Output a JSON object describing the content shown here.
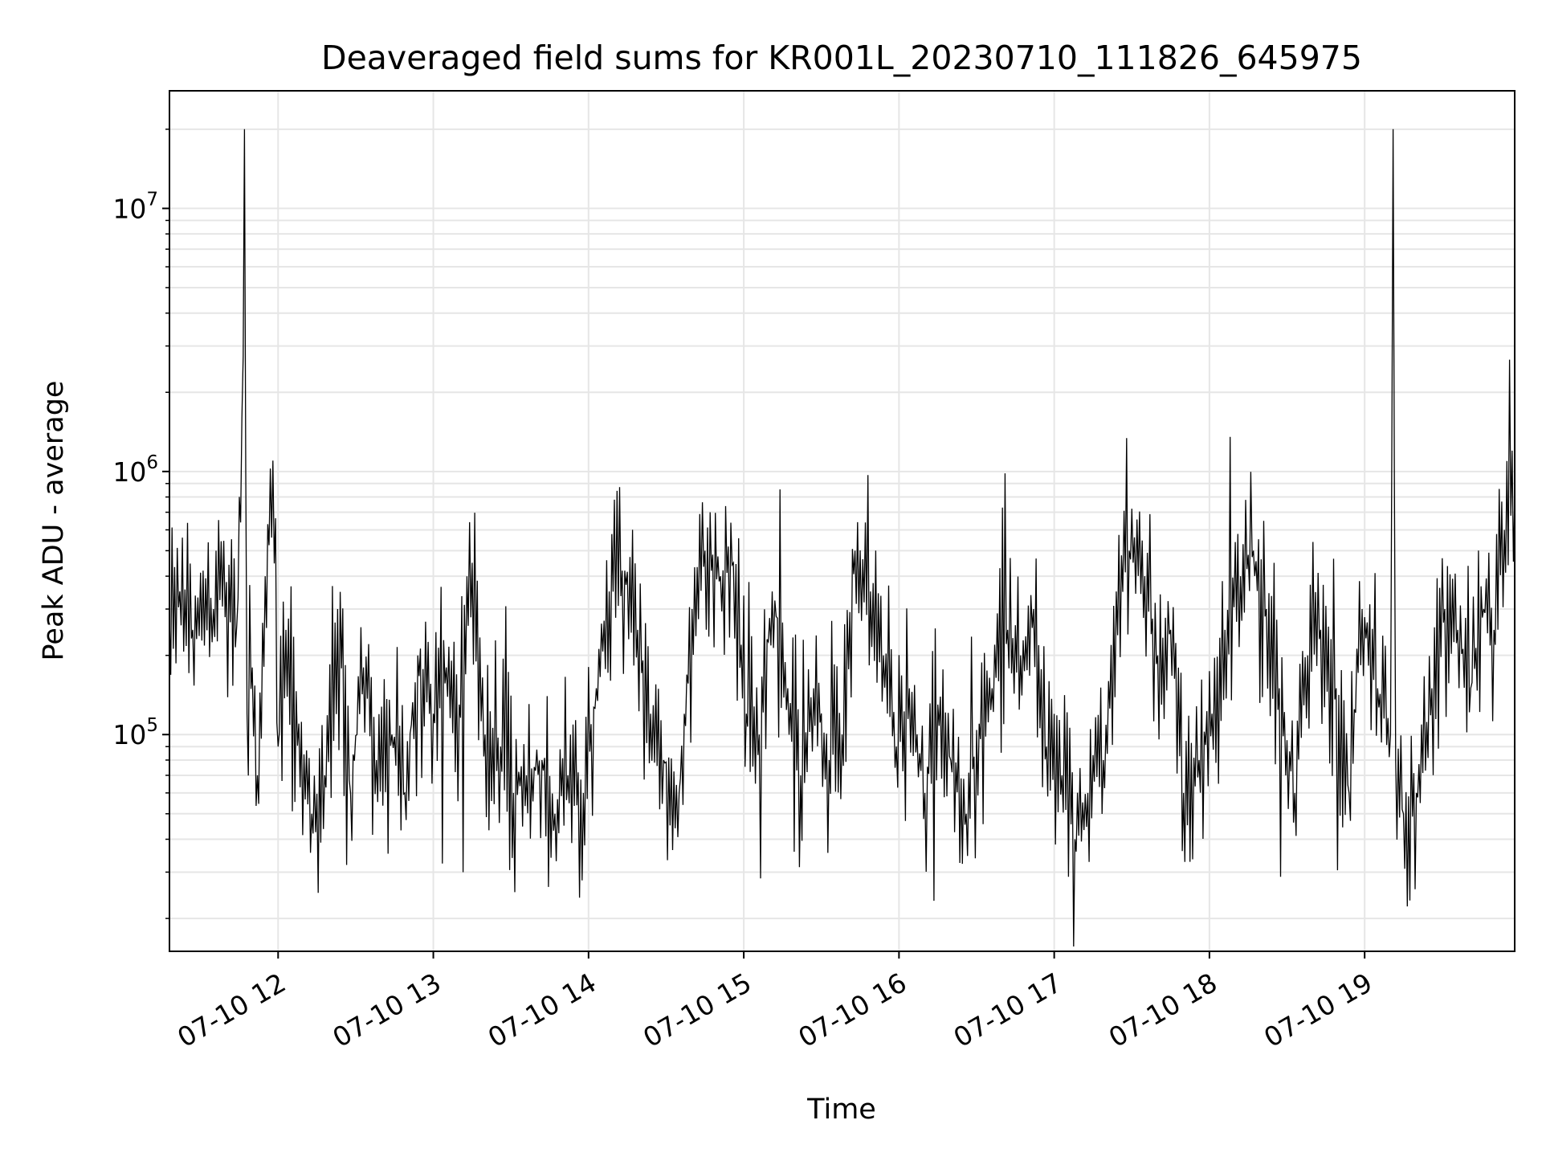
{
  "chart_data": {
    "type": "line",
    "title": "Deaveraged field sums for KR001L_20230710_111826_645975",
    "xlabel": "Time",
    "ylabel": "Peak ADU - average",
    "x_scale": "time",
    "y_scale": "log",
    "xlim": [
      "2023-07-10 11:18",
      "2023-07-10 19:58"
    ],
    "ylim": [
      15000,
      28000000
    ],
    "grid": true,
    "line_color": "#000000",
    "grid_color": "#e6e6e6",
    "x_ticks": [
      {
        "value": "2023-07-10 12:00",
        "label": "07-10 12"
      },
      {
        "value": "2023-07-10 13:00",
        "label": "07-10 13"
      },
      {
        "value": "2023-07-10 14:00",
        "label": "07-10 14"
      },
      {
        "value": "2023-07-10 15:00",
        "label": "07-10 15"
      },
      {
        "value": "2023-07-10 16:00",
        "label": "07-10 16"
      },
      {
        "value": "2023-07-10 17:00",
        "label": "07-10 17"
      },
      {
        "value": "2023-07-10 18:00",
        "label": "07-10 18"
      },
      {
        "value": "2023-07-10 19:00",
        "label": "07-10 19"
      }
    ],
    "y_ticks": [
      {
        "value": 100000,
        "base": "10",
        "exp": "5"
      },
      {
        "value": 1000000,
        "base": "10",
        "exp": "6"
      },
      {
        "value": 10000000,
        "base": "10",
        "exp": "7"
      }
    ],
    "series": [
      {
        "x": [
          "2023-07-10 11:18",
          "2023-07-10 11:22",
          "2023-07-10 11:27",
          "2023-07-10 11:31",
          "2023-07-10 11:35",
          "2023-07-10 11:40",
          "2023-07-10 11:44",
          "2023-07-10 11:46",
          "2023-07-10 11:47",
          "2023-07-10 11:48",
          "2023-07-10 11:50",
          "2023-07-10 11:52",
          "2023-07-10 11:55",
          "2023-07-10 11:58",
          "2023-07-10 12:00",
          "2023-07-10 12:03",
          "2023-07-10 12:08",
          "2023-07-10 12:13",
          "2023-07-10 12:18",
          "2023-07-10 12:23",
          "2023-07-10 12:28",
          "2023-07-10 12:33",
          "2023-07-10 12:38",
          "2023-07-10 12:44",
          "2023-07-10 12:49",
          "2023-07-10 12:54",
          "2023-07-10 13:00",
          "2023-07-10 13:05",
          "2023-07-10 13:10",
          "2023-07-10 13:15",
          "2023-07-10 13:20",
          "2023-07-10 13:26",
          "2023-07-10 13:31",
          "2023-07-10 13:36",
          "2023-07-10 13:42",
          "2023-07-10 13:47",
          "2023-07-10 13:52",
          "2023-07-10 13:58",
          "2023-07-10 14:03",
          "2023-07-10 14:08",
          "2023-07-10 14:14",
          "2023-07-10 14:19",
          "2023-07-10 14:24",
          "2023-07-10 14:29",
          "2023-07-10 14:35",
          "2023-07-10 14:40",
          "2023-07-10 14:45",
          "2023-07-10 14:51",
          "2023-07-10 14:56",
          "2023-07-10 15:01",
          "2023-07-10 15:06",
          "2023-07-10 15:11",
          "2023-07-10 15:17",
          "2023-07-10 15:22",
          "2023-07-10 15:27",
          "2023-07-10 15:33",
          "2023-07-10 15:38",
          "2023-07-10 15:43",
          "2023-07-10 15:49",
          "2023-07-10 15:54",
          "2023-07-10 15:59",
          "2023-07-10 16:04",
          "2023-07-10 16:10",
          "2023-07-10 16:15",
          "2023-07-10 16:20",
          "2023-07-10 16:26",
          "2023-07-10 16:31",
          "2023-07-10 16:36",
          "2023-07-10 16:42",
          "2023-07-10 16:47",
          "2023-07-10 16:52",
          "2023-07-10 16:57",
          "2023-07-10 17:03",
          "2023-07-10 17:08",
          "2023-07-10 17:13",
          "2023-07-10 17:19",
          "2023-07-10 17:24",
          "2023-07-10 17:29",
          "2023-07-10 17:35",
          "2023-07-10 17:40",
          "2023-07-10 17:45",
          "2023-07-10 17:50",
          "2023-07-10 17:56",
          "2023-07-10 18:01",
          "2023-07-10 18:06",
          "2023-07-10 18:12",
          "2023-07-10 18:17",
          "2023-07-10 18:22",
          "2023-07-10 18:27",
          "2023-07-10 18:33",
          "2023-07-10 18:38",
          "2023-07-10 18:43",
          "2023-07-10 18:49",
          "2023-07-10 18:54",
          "2023-07-10 18:59",
          "2023-07-10 19:05",
          "2023-07-10 19:10",
          "2023-07-10 19:11",
          "2023-07-10 19:12",
          "2023-07-10 19:15",
          "2023-07-10 19:20",
          "2023-07-10 19:26",
          "2023-07-10 19:31",
          "2023-07-10 19:36",
          "2023-07-10 19:41",
          "2023-07-10 19:46",
          "2023-07-10 19:50",
          "2023-07-10 19:54",
          "2023-07-10 19:58"
        ],
        "values": [
          280000,
          350000,
          250000,
          420000,
          300000,
          380000,
          260000,
          1600000,
          20000000,
          120000,
          180000,
          70000,
          400000,
          1100000,
          90000,
          250000,
          110000,
          50000,
          70000,
          300000,
          60000,
          180000,
          80000,
          100000,
          60000,
          200000,
          120000,
          180000,
          130000,
          450000,
          100000,
          90000,
          60000,
          70000,
          80000,
          50000,
          70000,
          60000,
          150000,
          350000,
          420000,
          250000,
          120000,
          80000,
          60000,
          300000,
          500000,
          400000,
          450000,
          120000,
          100000,
          350000,
          150000,
          70000,
          150000,
          80000,
          100000,
          500000,
          350000,
          200000,
          90000,
          150000,
          60000,
          130000,
          80000,
          50000,
          110000,
          150000,
          250000,
          200000,
          300000,
          90000,
          70000,
          40000,
          60000,
          80000,
          350000,
          500000,
          400000,
          200000,
          250000,
          60000,
          80000,
          120000,
          250000,
          400000,
          500000,
          300000,
          150000,
          60000,
          200000,
          250000,
          150000,
          60000,
          300000,
          150000,
          100000,
          20000000,
          80000,
          50000,
          60000,
          150000,
          300000,
          250000,
          150000,
          300000,
          250000,
          600000,
          800000
        ]
      }
    ]
  }
}
